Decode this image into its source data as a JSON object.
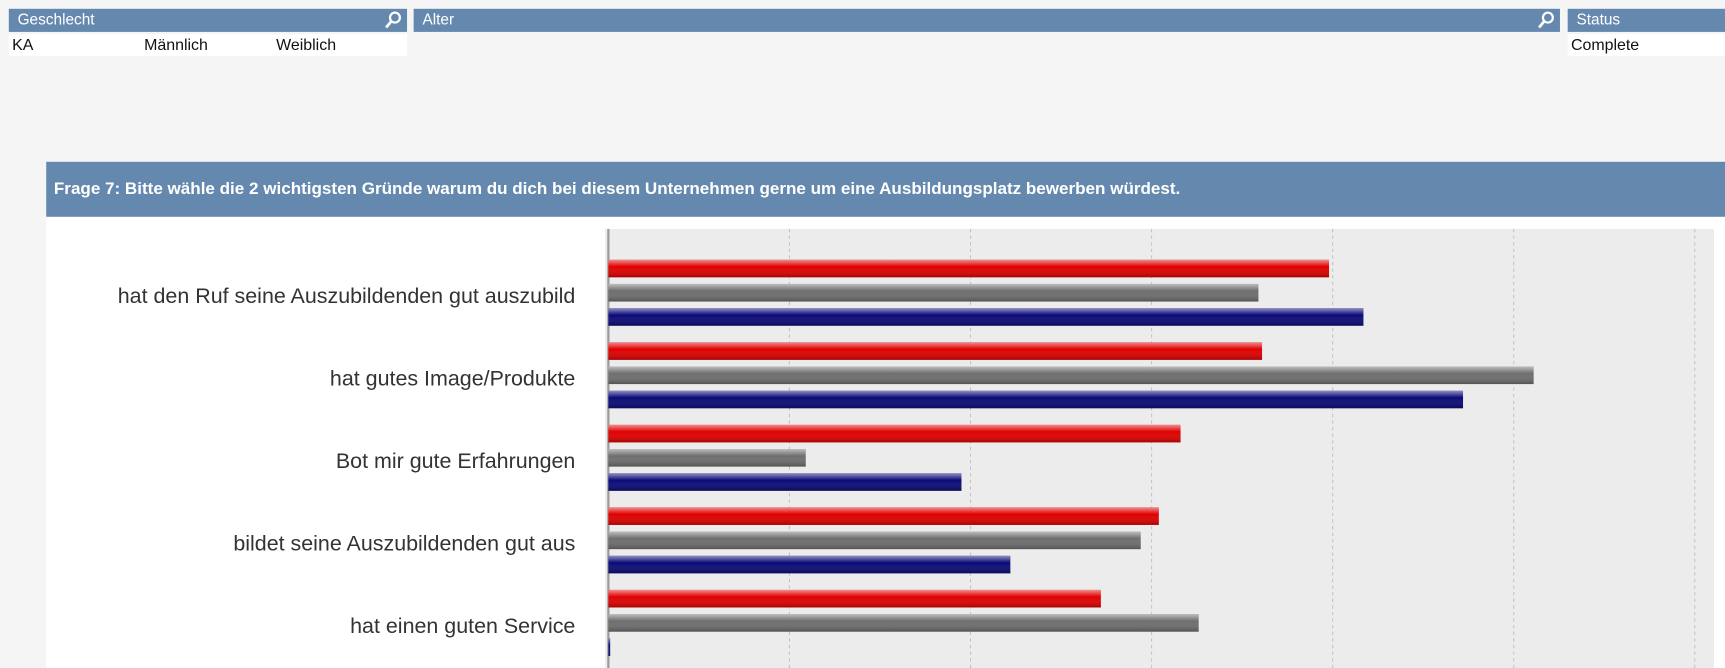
{
  "filters": [
    {
      "title": "Geschlecht",
      "options": [
        "KA",
        "Männlich",
        "Weiblich"
      ]
    },
    {
      "title": "Alter"
    },
    {
      "title": "Status",
      "options": [
        "Complete"
      ]
    }
  ],
  "chart_data": {
    "type": "hbar",
    "title": "Frage 7: Bitte wähle die 2 wichtigsten Gründe warum du dich bei diesem Unternehmen gerne um eine Ausbildungsplatz bewerben würdest.",
    "categories": [
      "hat den Ruf seine Auszubildenden gut auszubild",
      "hat gutes Image/Produkte",
      "Bot mir gute Erfahrungen",
      "bildet seine Auszubildenden gut aus",
      "hat einen guten Service"
    ],
    "series": [
      {
        "color": "#e00000",
        "values": [
          3.98,
          3.61,
          3.16,
          3.04,
          2.72
        ]
      },
      {
        "color": "#6e6e6e",
        "values": [
          3.59,
          5.11,
          1.09,
          2.94,
          3.26
        ]
      },
      {
        "color": "#0a0a78",
        "values": [
          4.17,
          4.72,
          1.95,
          2.22,
          0.01
        ]
      }
    ],
    "xlim": [
      0,
      6.1
    ],
    "xticks": [
      0,
      1,
      2,
      3,
      4,
      5,
      6
    ],
    "grid": true
  }
}
